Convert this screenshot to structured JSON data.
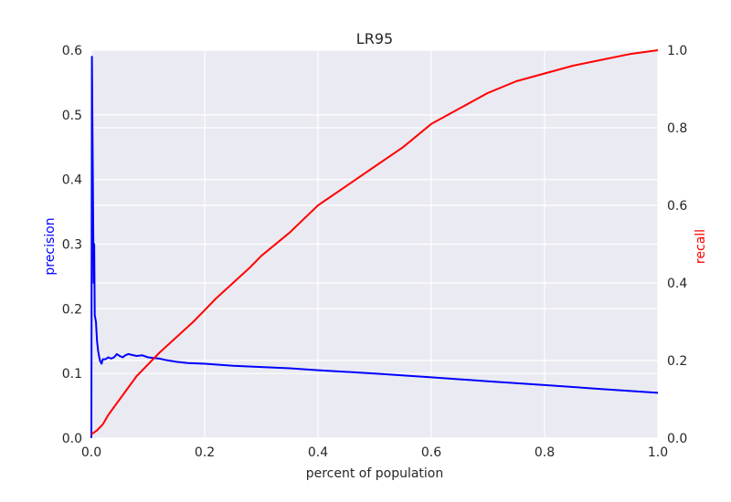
{
  "chart_data": {
    "type": "line",
    "title": "LR95",
    "xlabel": "percent of population",
    "ylabel_left": "precision",
    "ylabel_right": "recall",
    "xlim": [
      0,
      1
    ],
    "ylim_left": [
      0,
      0.6
    ],
    "ylim_right": [
      0,
      1
    ],
    "xticks": [
      0,
      0.2,
      0.4,
      0.6,
      0.8,
      1
    ],
    "xtick_labels": [
      "0.0",
      "0.2",
      "0.4",
      "0.6",
      "0.8",
      "1.0"
    ],
    "yticks_left": [
      0,
      0.1,
      0.2,
      0.3,
      0.4,
      0.5,
      0.6
    ],
    "ytick_labels_left": [
      "0.0",
      "0.1",
      "0.2",
      "0.3",
      "0.4",
      "0.5",
      "0.6"
    ],
    "yticks_right": [
      0,
      0.2,
      0.4,
      0.6,
      0.8,
      1
    ],
    "ytick_labels_right": [
      "0.0",
      "0.2",
      "0.4",
      "0.6",
      "0.8",
      "1.0"
    ],
    "grid": true,
    "colors": {
      "background": "#eaeaf2",
      "grid": "#ffffff",
      "precision": "#0000ff",
      "recall": "#ff0000"
    },
    "series": [
      {
        "axis": "left",
        "color": "#0000ff",
        "x": [
          0,
          0.001,
          0.002,
          0.003,
          0.004,
          0.005,
          0.006,
          0.008,
          0.01,
          0.012,
          0.015,
          0.018,
          0.02,
          0.025,
          0.03,
          0.035,
          0.04,
          0.045,
          0.05,
          0.055,
          0.06,
          0.065,
          0.07,
          0.08,
          0.09,
          0.1,
          0.11,
          0.12,
          0.13,
          0.15,
          0.17,
          0.2,
          0.25,
          0.3,
          0.35,
          0.4,
          0.5,
          0.6,
          0.7,
          0.8,
          0.9,
          1.0
        ],
        "y": [
          0,
          0.59,
          0.48,
          0.35,
          0.24,
          0.3,
          0.19,
          0.18,
          0.15,
          0.135,
          0.12,
          0.115,
          0.122,
          0.122,
          0.125,
          0.123,
          0.125,
          0.13,
          0.127,
          0.125,
          0.128,
          0.13,
          0.129,
          0.127,
          0.128,
          0.125,
          0.124,
          0.123,
          0.121,
          0.118,
          0.116,
          0.115,
          0.112,
          0.11,
          0.108,
          0.105,
          0.1,
          0.094,
          0.088,
          0.082,
          0.076,
          0.07
        ]
      },
      {
        "axis": "right",
        "color": "#ff0000",
        "x": [
          0,
          0.01,
          0.02,
          0.03,
          0.04,
          0.05,
          0.06,
          0.07,
          0.08,
          0.1,
          0.12,
          0.15,
          0.18,
          0.2,
          0.22,
          0.25,
          0.28,
          0.3,
          0.35,
          0.4,
          0.45,
          0.5,
          0.55,
          0.6,
          0.65,
          0.7,
          0.75,
          0.8,
          0.85,
          0.9,
          0.95,
          1.0
        ],
        "y": [
          0.01,
          0.02,
          0.035,
          0.06,
          0.08,
          0.1,
          0.12,
          0.14,
          0.16,
          0.19,
          0.22,
          0.26,
          0.3,
          0.33,
          0.36,
          0.4,
          0.44,
          0.47,
          0.53,
          0.6,
          0.65,
          0.7,
          0.75,
          0.81,
          0.85,
          0.89,
          0.92,
          0.94,
          0.96,
          0.975,
          0.99,
          1.0
        ]
      }
    ]
  }
}
